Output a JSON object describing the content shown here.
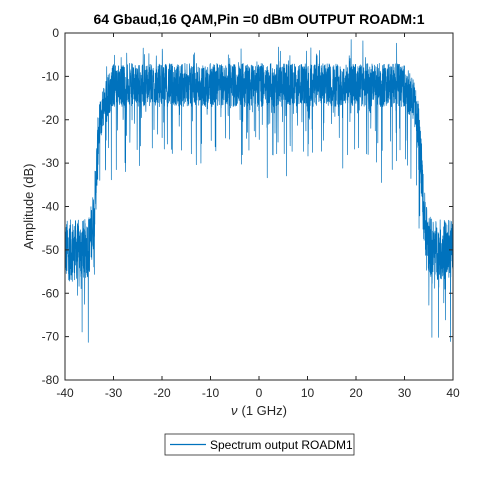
{
  "chart_data": {
    "type": "line",
    "title": "64 Gbaud,16 QAM,Pin =0 dBm OUTPUT ROADM:1",
    "xlabel_symbol": "ν",
    "xlabel_unit": "(1 GHz)",
    "ylabel": "Amplitude (dB)",
    "xlim": [
      -40,
      40
    ],
    "ylim": [
      -80,
      0
    ],
    "x_ticks": [
      -40,
      -30,
      -20,
      -10,
      0,
      10,
      20,
      30,
      40
    ],
    "y_ticks": [
      0,
      -10,
      -20,
      -30,
      -40,
      -50,
      -60,
      -70,
      -80
    ],
    "grid": false,
    "legend_position": "bottom-center-outside",
    "series": [
      {
        "name": "Spectrum output ROADM1",
        "color": "#0072BD",
        "style": "noisy spectrum",
        "x": [
          -40,
          -36,
          -35,
          -34,
          -33,
          -32,
          -30,
          -20,
          -10,
          0,
          10,
          20,
          30,
          32,
          33,
          34,
          35,
          36,
          40
        ],
        "y": [
          -50,
          -50,
          -49,
          -42,
          -22,
          -16,
          -12,
          -12,
          -12,
          -12,
          -12,
          -12,
          -12,
          -16,
          -22,
          -42,
          -49,
          -50,
          -50
        ]
      }
    ]
  }
}
